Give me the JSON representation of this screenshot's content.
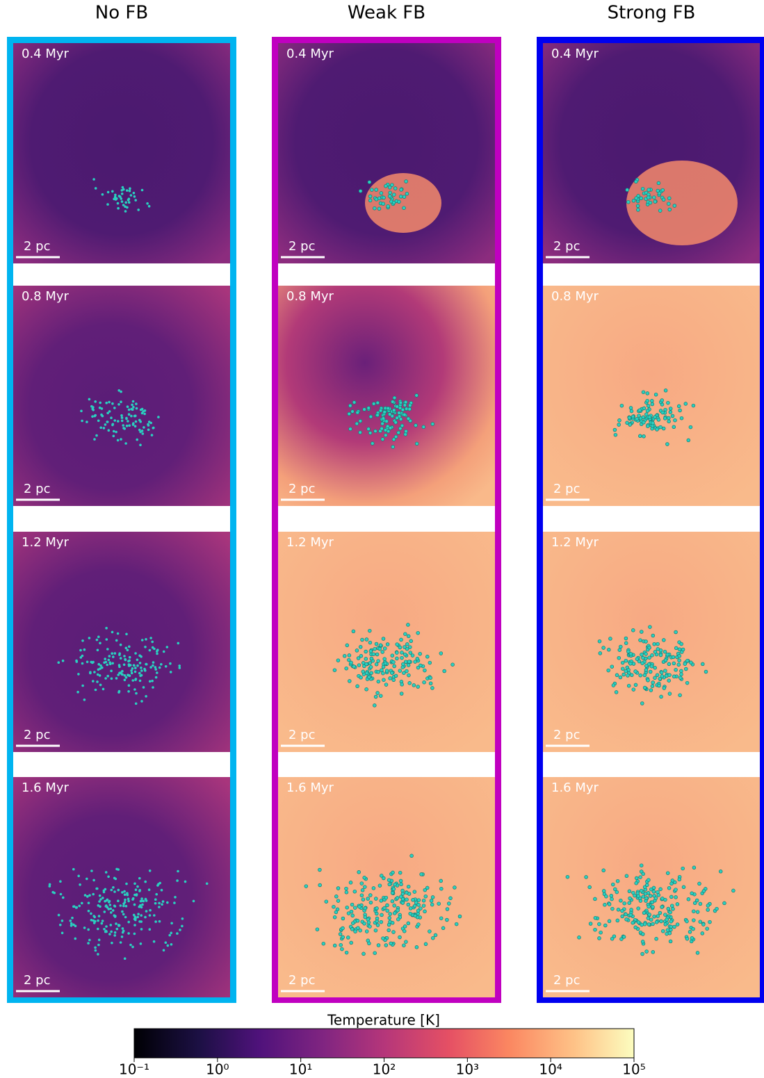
{
  "columns": [
    {
      "title": "No FB",
      "frame_color": "#00b4f0",
      "panels": [
        {
          "time": "0.4 Myr",
          "scale": "2 pc"
        },
        {
          "time": "0.8 Myr",
          "scale": "2 pc"
        },
        {
          "time": "1.2 Myr",
          "scale": "2 pc"
        },
        {
          "time": "1.6 Myr",
          "scale": "2 pc"
        }
      ]
    },
    {
      "title": "Weak FB",
      "frame_color": "#c000c0",
      "panels": [
        {
          "time": "0.4 Myr",
          "scale": "2 pc"
        },
        {
          "time": "0.8 Myr",
          "scale": "2 pc"
        },
        {
          "time": "1.2 Myr",
          "scale": "2 pc"
        },
        {
          "time": "1.6 Myr",
          "scale": "2 pc"
        }
      ]
    },
    {
      "title": "Strong FB",
      "frame_color": "#0000f0",
      "panels": [
        {
          "time": "0.4 Myr",
          "scale": "2 pc"
        },
        {
          "time": "0.8 Myr",
          "scale": "2 pc"
        },
        {
          "time": "1.2 Myr",
          "scale": "2 pc"
        },
        {
          "time": "1.6 Myr",
          "scale": "2 pc"
        }
      ]
    }
  ],
  "colorbar": {
    "label": "Temperature [K]",
    "log_scale": true,
    "lim": [
      0.1,
      100000
    ],
    "ticks": [
      {
        "value": 0.1,
        "label": "10⁻¹"
      },
      {
        "value": 1,
        "label": "10⁰"
      },
      {
        "value": 10,
        "label": "10¹"
      },
      {
        "value": 100,
        "label": "10²"
      },
      {
        "value": 1000,
        "label": "10³"
      },
      {
        "value": 10000,
        "label": "10⁴"
      },
      {
        "value": 100000,
        "label": "10⁵"
      }
    ]
  }
}
